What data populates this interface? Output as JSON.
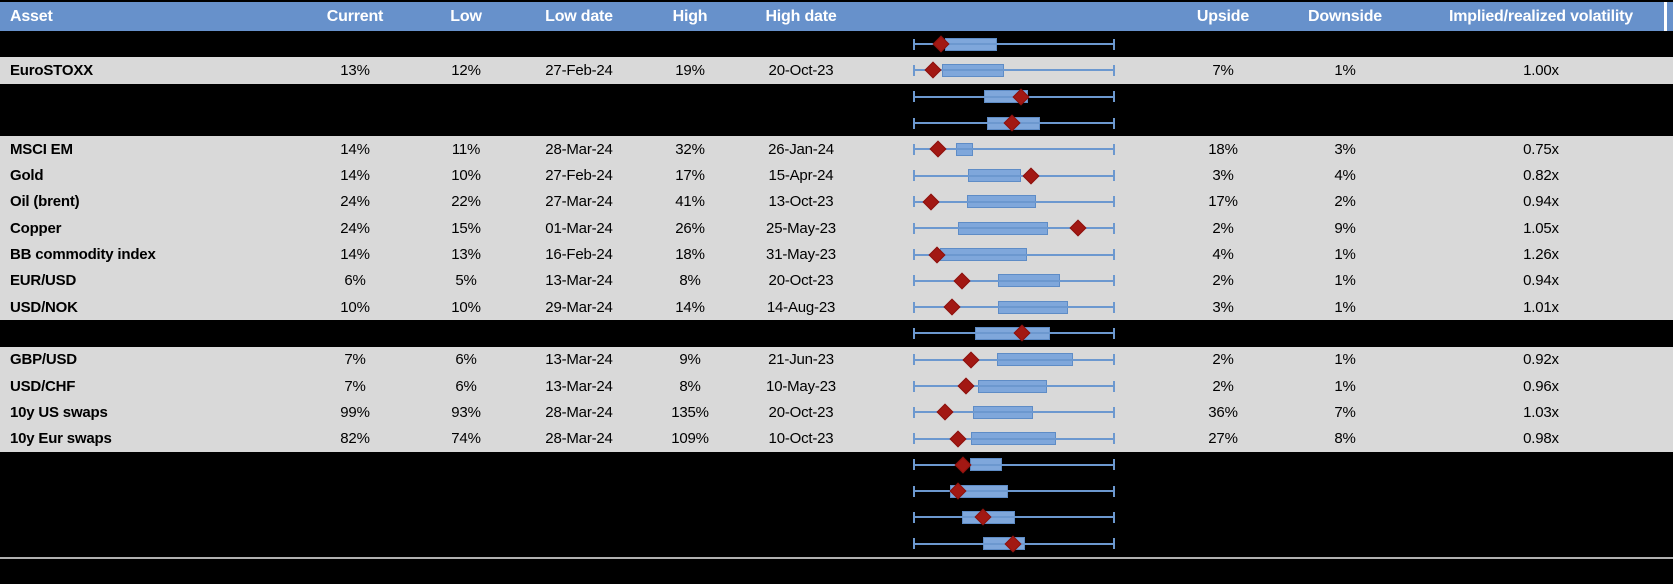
{
  "header": {
    "labels": [
      "Asset",
      "Current",
      "Low",
      "Low date",
      "High",
      "High date",
      "",
      "Upside",
      "Downside",
      "Implied/realized volatility"
    ]
  },
  "colors": {
    "header_bg": "#6791CB",
    "header_text": "#FFFFFF",
    "data_row_bg": "#D9D9D9",
    "spacer_row_bg": "#000000",
    "body_text": "#000000",
    "whisker_blue": "#6C98CF",
    "box_fill_blue": "#7FA7DB",
    "box_border_blue": "#5E8CC6",
    "diamond_red": "#A21813",
    "footer_line_gray": "#B0B0B0"
  },
  "chart_data": {
    "type": "table",
    "note_type": "table of implied volatility stats, each row also shown as a horizontal box-whisker plot with a red diamond marker; box plot x-axis is unlabeled, geometry below is normalized 0-1 across the whisker span",
    "columns": [
      "Asset",
      "Current",
      "Low",
      "Low date",
      "High",
      "High date",
      "Upside",
      "Downside",
      "Implied/realized volatility"
    ],
    "rows": [
      {
        "type": "spacer",
        "plot": {
          "box": [
            0.158,
            0.416
          ],
          "diamond": 0.139
        }
      },
      {
        "type": "data",
        "asset": "EuroSTOXX",
        "current": "13%",
        "low": "12%",
        "low_date": "27-Feb-24",
        "high": "19%",
        "high_date": "20-Oct-23",
        "upside": "7%",
        "downside": "1%",
        "irv": "1.00x",
        "plot": {
          "box": [
            0.144,
            0.45
          ],
          "diamond": 0.099
        }
      },
      {
        "type": "spacer",
        "plot": {
          "box": [
            0.351,
            0.569
          ],
          "diamond": 0.535
        }
      },
      {
        "type": "spacer",
        "plot": {
          "box": [
            0.366,
            0.629
          ],
          "diamond": 0.49
        }
      },
      {
        "type": "data",
        "asset": "MSCI EM",
        "current": "14%",
        "low": "11%",
        "low_date": "28-Mar-24",
        "high": "32%",
        "high_date": "26-Jan-24",
        "upside": "18%",
        "downside": "3%",
        "irv": "0.75x",
        "plot": {
          "box": [
            0.212,
            0.297
          ],
          "diamond": 0.124
        }
      },
      {
        "type": "data",
        "asset": "Gold",
        "current": "14%",
        "low": "10%",
        "low_date": "27-Feb-24",
        "high": "17%",
        "high_date": "15-Apr-24",
        "upside": "3%",
        "downside": "4%",
        "irv": "0.82x",
        "plot": {
          "box": [
            0.272,
            0.535
          ],
          "diamond": 0.584
        }
      },
      {
        "type": "data",
        "asset": "Oil (brent)",
        "current": "24%",
        "low": "22%",
        "low_date": "27-Mar-24",
        "high": "41%",
        "high_date": "13-Oct-23",
        "upside": "17%",
        "downside": "2%",
        "irv": "0.94x",
        "plot": {
          "box": [
            0.267,
            0.609
          ],
          "diamond": 0.089
        }
      },
      {
        "type": "data",
        "asset": "Copper",
        "current": "24%",
        "low": "15%",
        "low_date": "01-Mar-24",
        "high": "26%",
        "high_date": "25-May-23",
        "upside": "2%",
        "downside": "9%",
        "irv": "1.05x",
        "plot": {
          "box": [
            0.223,
            0.668
          ],
          "diamond": 0.817
        }
      },
      {
        "type": "data",
        "asset": "BB commodity index",
        "current": "14%",
        "low": "13%",
        "low_date": "16-Feb-24",
        "high": "18%",
        "high_date": "31-May-23",
        "upside": "4%",
        "downside": "1%",
        "irv": "1.26x",
        "plot": {
          "box": [
            0.134,
            0.564
          ],
          "diamond": 0.119
        }
      },
      {
        "type": "data",
        "asset": "EUR/USD",
        "current": "6%",
        "low": "5%",
        "low_date": "13-Mar-24",
        "high": "8%",
        "high_date": "20-Oct-23",
        "upside": "2%",
        "downside": "1%",
        "irv": "0.94x",
        "plot": {
          "box": [
            0.421,
            0.728
          ],
          "diamond": 0.243
        }
      },
      {
        "type": "data",
        "asset": "USD/NOK",
        "current": "10%",
        "low": "10%",
        "low_date": "29-Mar-24",
        "high": "14%",
        "high_date": "14-Aug-23",
        "upside": "3%",
        "downside": "1%",
        "irv": "1.01x",
        "plot": {
          "box": [
            0.421,
            0.767
          ],
          "diamond": 0.193
        }
      },
      {
        "type": "spacer",
        "plot": {
          "box": [
            0.307,
            0.678
          ],
          "diamond": 0.54
        }
      },
      {
        "type": "data",
        "asset": "GBP/USD",
        "current": "7%",
        "low": "6%",
        "low_date": "13-Mar-24",
        "high": "9%",
        "high_date": "21-Jun-23",
        "upside": "2%",
        "downside": "1%",
        "irv": "0.92x",
        "plot": {
          "box": [
            0.416,
            0.792
          ],
          "diamond": 0.287
        }
      },
      {
        "type": "data",
        "asset": "USD/CHF",
        "current": "7%",
        "low": "6%",
        "low_date": "13-Mar-24",
        "high": "8%",
        "high_date": "10-May-23",
        "upside": "2%",
        "downside": "1%",
        "irv": "0.96x",
        "plot": {
          "box": [
            0.322,
            0.663
          ],
          "diamond": 0.262
        }
      },
      {
        "type": "data",
        "asset": "10y US swaps",
        "current": "99%",
        "low": "93%",
        "low_date": "28-Mar-24",
        "high": "135%",
        "high_date": "20-Oct-23",
        "upside": "36%",
        "downside": "7%",
        "irv": "1.03x",
        "plot": {
          "box": [
            0.297,
            0.594
          ],
          "diamond": 0.158
        }
      },
      {
        "type": "data",
        "asset": "10y Eur swaps",
        "current": "82%",
        "low": "74%",
        "low_date": "28-Mar-24",
        "high": "109%",
        "high_date": "10-Oct-23",
        "upside": "27%",
        "downside": "8%",
        "irv": "0.98x",
        "plot": {
          "box": [
            0.287,
            0.708
          ],
          "diamond": 0.223
        }
      },
      {
        "type": "spacer",
        "plot": {
          "box": [
            0.282,
            0.441
          ],
          "diamond": 0.248
        }
      },
      {
        "type": "spacer",
        "plot": {
          "box": [
            0.183,
            0.47
          ],
          "diamond": 0.223
        }
      },
      {
        "type": "spacer",
        "plot": {
          "box": [
            0.243,
            0.505
          ],
          "diamond": 0.347
        }
      },
      {
        "type": "spacer",
        "plot": {
          "box": [
            0.347,
            0.554
          ],
          "diamond": 0.495
        }
      }
    ]
  }
}
